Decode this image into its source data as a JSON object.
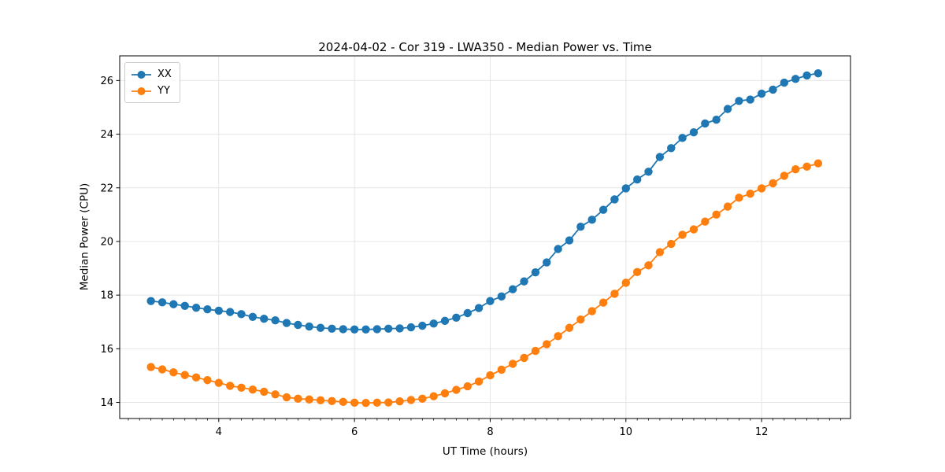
{
  "figure": {
    "title": "2024-04-02 - Cor 319 - LWA350 - Median Power vs. Time",
    "xlabel": "UT Time (hours)",
    "ylabel": "Median Power (CPU)"
  },
  "legend": {
    "items": [
      {
        "label": "XX",
        "color": "#1f77b4"
      },
      {
        "label": "YY",
        "color": "#ff7f0e"
      }
    ]
  },
  "chart_data": {
    "type": "line",
    "title": "2024-04-02 - Cor 319 - LWA350 - Median Power vs. Time",
    "xlabel": "UT Time (hours)",
    "ylabel": "Median Power (CPU)",
    "grid": true,
    "legend_position": "upper left",
    "xlim": [
      2.54,
      13.31
    ],
    "ylim": [
      13.4,
      26.92
    ],
    "xticks": [
      4,
      6,
      8,
      10,
      12
    ],
    "yticks": [
      14,
      16,
      18,
      20,
      22,
      24,
      26
    ],
    "x_minor_tick_step": 0.16667,
    "x": [
      3.0,
      3.167,
      3.333,
      3.5,
      3.667,
      3.833,
      4.0,
      4.167,
      4.333,
      4.5,
      4.667,
      4.833,
      5.0,
      5.167,
      5.333,
      5.5,
      5.667,
      5.833,
      6.0,
      6.167,
      6.333,
      6.5,
      6.667,
      6.833,
      7.0,
      7.167,
      7.333,
      7.5,
      7.667,
      7.833,
      8.0,
      8.167,
      8.333,
      8.5,
      8.667,
      8.833,
      9.0,
      9.167,
      9.333,
      9.5,
      9.667,
      9.833,
      10.0,
      10.167,
      10.333,
      10.5,
      10.667,
      10.833,
      11.0,
      11.167,
      11.333,
      11.5,
      11.667,
      11.833,
      12.0,
      12.167,
      12.333,
      12.5,
      12.667,
      12.833
    ],
    "series": [
      {
        "name": "XX",
        "color": "#1f77b4",
        "marker": "circle",
        "values": [
          17.78,
          17.73,
          17.66,
          17.6,
          17.53,
          17.47,
          17.42,
          17.37,
          17.29,
          17.19,
          17.12,
          17.06,
          16.96,
          16.89,
          16.83,
          16.78,
          16.75,
          16.73,
          16.72,
          16.72,
          16.73,
          16.75,
          16.76,
          16.8,
          16.86,
          16.94,
          17.04,
          17.16,
          17.33,
          17.52,
          17.78,
          17.95,
          18.22,
          18.51,
          18.85,
          19.22,
          19.72,
          20.04,
          20.55,
          20.81,
          21.18,
          21.57,
          21.98,
          22.31,
          22.6,
          23.15,
          23.48,
          23.86,
          24.07,
          24.4,
          24.54,
          24.94,
          25.24,
          25.29,
          25.51,
          25.66,
          25.92,
          26.06,
          26.19,
          26.27
        ]
      },
      {
        "name": "YY",
        "color": "#ff7f0e",
        "marker": "circle",
        "values": [
          15.32,
          15.23,
          15.12,
          15.02,
          14.93,
          14.83,
          14.73,
          14.62,
          14.55,
          14.48,
          14.4,
          14.3,
          14.19,
          14.14,
          14.11,
          14.08,
          14.05,
          14.02,
          13.99,
          13.98,
          13.99,
          14.0,
          14.04,
          14.09,
          14.14,
          14.23,
          14.34,
          14.47,
          14.6,
          14.78,
          15.01,
          15.22,
          15.44,
          15.66,
          15.92,
          16.17,
          16.47,
          16.78,
          17.09,
          17.4,
          17.72,
          18.05,
          18.46,
          18.86,
          19.11,
          19.6,
          19.91,
          20.25,
          20.45,
          20.74,
          21.0,
          21.3,
          21.63,
          21.78,
          21.98,
          22.17,
          22.45,
          22.69,
          22.79,
          22.91
        ]
      }
    ]
  }
}
